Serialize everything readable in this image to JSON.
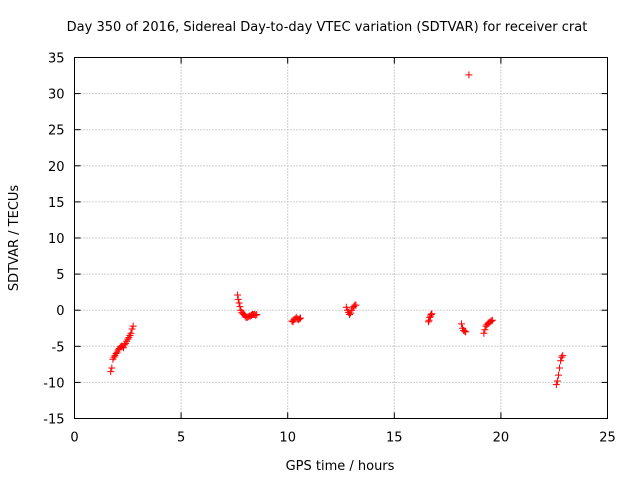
{
  "chart_data": {
    "type": "scatter",
    "title": "Day 350 of 2016, Sidereal Day-to-day VTEC variation (SDTVAR) for receiver crat",
    "xlabel": "GPS time / hours",
    "ylabel": "SDTVAR / TECUs",
    "xlim": [
      0,
      25
    ],
    "ylim": [
      -15,
      35
    ],
    "xticks": [
      "0",
      "5",
      "10",
      "15",
      "20",
      "25"
    ],
    "yticks": [
      "35",
      "30",
      "25",
      "20",
      "15",
      "10",
      "5",
      "0",
      "-5",
      "-10",
      "-15"
    ],
    "grid": true,
    "marker": "+",
    "color": "#ff0000",
    "series": [
      {
        "name": "SDTVAR",
        "x": [
          1.7,
          1.75,
          1.8,
          1.85,
          1.9,
          1.95,
          2.0,
          2.05,
          2.1,
          2.15,
          2.2,
          2.25,
          2.3,
          2.35,
          2.4,
          2.45,
          2.5,
          2.55,
          2.6,
          2.65,
          2.7,
          2.75,
          7.65,
          7.68,
          7.72,
          7.76,
          7.8,
          7.85,
          7.9,
          7.95,
          8.0,
          8.05,
          8.1,
          8.15,
          8.2,
          8.25,
          8.3,
          8.35,
          8.4,
          8.45,
          8.5,
          8.55,
          10.2,
          10.25,
          10.3,
          10.35,
          10.4,
          10.45,
          10.5,
          10.55,
          10.6,
          12.75,
          12.8,
          12.85,
          12.9,
          12.95,
          13.0,
          13.05,
          13.1,
          13.15,
          13.2,
          16.6,
          16.63,
          16.66,
          16.7,
          16.73,
          16.76,
          18.15,
          18.2,
          18.25,
          18.3,
          18.35,
          19.2,
          19.25,
          19.3,
          19.35,
          19.4,
          19.45,
          19.5,
          19.55,
          19.6,
          22.6,
          22.65,
          22.7,
          22.75,
          22.8,
          22.85,
          22.9,
          18.5
        ],
        "y": [
          -8.5,
          -8.0,
          -6.8,
          -6.5,
          -6.3,
          -6.0,
          -5.8,
          -5.5,
          -5.3,
          -5.1,
          -5.0,
          -5.0,
          -5.2,
          -4.8,
          -4.6,
          -4.3,
          -4.0,
          -3.8,
          -3.5,
          -3.2,
          -2.6,
          -2.2,
          2.1,
          1.5,
          1.0,
          0.5,
          0.0,
          -0.3,
          -0.5,
          -0.6,
          -0.8,
          -1.0,
          -1.0,
          -0.9,
          -0.8,
          -0.8,
          -0.7,
          -0.6,
          -0.6,
          -0.6,
          -0.7,
          -0.6,
          -1.5,
          -1.6,
          -1.3,
          -1.2,
          -1.0,
          -1.2,
          -1.3,
          -1.2,
          -1.1,
          0.4,
          0.0,
          -0.3,
          -0.6,
          -0.4,
          0.0,
          0.3,
          0.5,
          0.7,
          0.7,
          -1.6,
          -1.4,
          -1.0,
          -0.8,
          -0.6,
          -0.5,
          -1.9,
          -2.5,
          -2.8,
          -2.9,
          -3.0,
          -3.2,
          -2.7,
          -2.2,
          -2.0,
          -1.8,
          -1.7,
          -1.6,
          -1.5,
          -1.4,
          -10.3,
          -9.8,
          -9.0,
          -8.0,
          -7.0,
          -6.5,
          -6.3,
          32.6
        ]
      }
    ]
  }
}
